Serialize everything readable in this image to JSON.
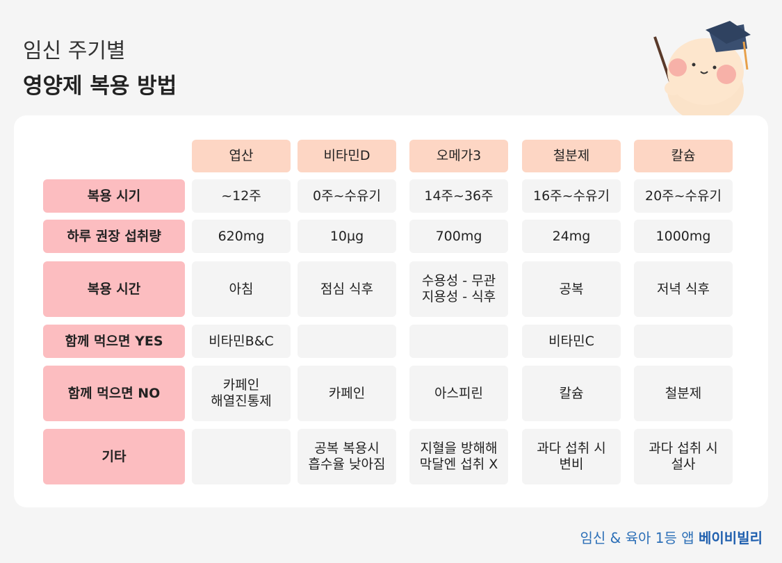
{
  "header": {
    "subtitle": "임신 주기별",
    "title": "영양제 복용 방법"
  },
  "table": {
    "columns": [
      "엽산",
      "비타민D",
      "오메가3",
      "철분제",
      "칼슘"
    ],
    "rows": [
      {
        "label": "복용 시기",
        "cells": [
          "~12주",
          "0주~수유기",
          "14주~36주",
          "16주~수유기",
          "20주~수유기"
        ]
      },
      {
        "label": "하루 권장 섭취량",
        "cells": [
          "620mg",
          "10µg",
          "700mg",
          "24mg",
          "1000mg"
        ]
      },
      {
        "label": "복용 시간",
        "cells": [
          "아침",
          "점심 식후",
          [
            "수용성 - 무관",
            "지용성 - 식후"
          ],
          "공복",
          "저녁 식후"
        ]
      },
      {
        "label": "함께 먹으면 YES",
        "cells": [
          "비타민B&C",
          null,
          null,
          "비타민C",
          null
        ]
      },
      {
        "label": "함께 먹으면 NO",
        "cells": [
          [
            "카페인",
            "해열진통제"
          ],
          "카페인",
          "아스피린",
          "칼슘",
          "철분제"
        ]
      },
      {
        "label": "기타",
        "cells": [
          null,
          [
            "공복 복용시",
            "흡수율 낮아짐"
          ],
          [
            "지혈을 방해해",
            "막달엔 섭취 X"
          ],
          [
            "과다 섭취 시",
            "변비"
          ],
          [
            "과다 섭취 시",
            "설사"
          ]
        ]
      }
    ]
  },
  "footer": {
    "text": "임신 & 육아 1등 앱",
    "brand": "베이비빌리"
  }
}
